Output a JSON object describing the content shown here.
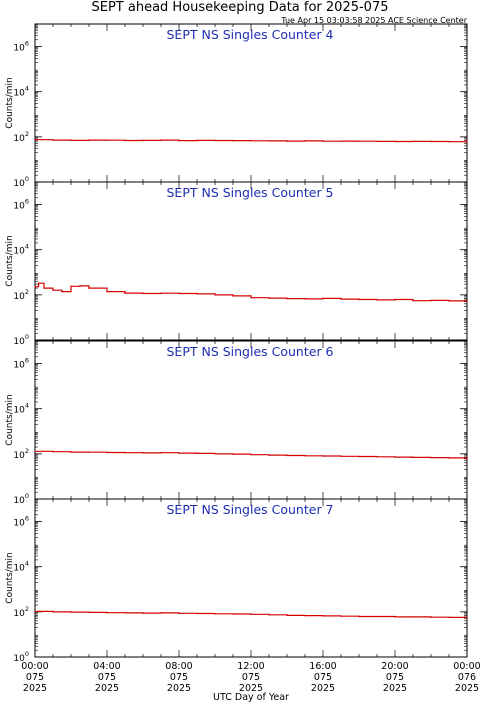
{
  "title": "SEPT ahead Housekeeping Data for 2025-075",
  "timestamp": "Tue Apr 15 03:03:58 2025 ACE Science Center",
  "xlabel": "UTC Day of Year",
  "colors": {
    "trace": "#d40000",
    "panel_title": "#1f2fb4",
    "axes": "#000000"
  },
  "chart_data": [
    {
      "type": "line",
      "title": "SEPT NS Singles Counter 4",
      "ylabel": "Counts/min",
      "yscale": "log",
      "ylim": [
        1,
        10000000
      ],
      "ytick_values": [
        1,
        100,
        10000,
        1000000
      ],
      "ytick_labels": [
        "10",
        "10",
        "10",
        "10"
      ],
      "ytick_exponents": [
        "0",
        "2",
        "4",
        "6"
      ],
      "xlim": [
        0,
        24
      ],
      "series": [
        {
          "x": [
            0,
            1,
            2,
            3,
            4,
            5,
            6,
            7,
            8,
            9,
            10,
            11,
            12,
            13,
            14,
            15,
            16,
            17,
            18,
            19,
            20,
            21,
            22,
            23,
            24
          ],
          "values": [
            75,
            72,
            70,
            72,
            71,
            69,
            70,
            72,
            68,
            70,
            69,
            68,
            67,
            66,
            65,
            66,
            64,
            65,
            64,
            63,
            62,
            63,
            62,
            61,
            70
          ]
        }
      ]
    },
    {
      "type": "line",
      "title": "SEPT NS Singles Counter 5",
      "ylabel": "Counts/min",
      "yscale": "log",
      "ylim": [
        1,
        10000000
      ],
      "ytick_values": [
        1,
        100,
        10000,
        1000000
      ],
      "ytick_labels": [
        "10",
        "10",
        "10",
        "10"
      ],
      "ytick_exponents": [
        "0",
        "2",
        "4",
        "6"
      ],
      "xlim": [
        0,
        24
      ],
      "series": [
        {
          "x": [
            0,
            0.2,
            0.5,
            1,
            1.5,
            2,
            2.5,
            3,
            4,
            5,
            6,
            7,
            8,
            9,
            10,
            11,
            12,
            13,
            14,
            15,
            16,
            17,
            18,
            19,
            20,
            21,
            22,
            23,
            24
          ],
          "values": [
            230,
            330,
            200,
            160,
            140,
            240,
            250,
            200,
            140,
            120,
            115,
            118,
            115,
            110,
            100,
            90,
            75,
            72,
            68,
            66,
            70,
            65,
            62,
            60,
            62,
            55,
            57,
            54,
            50
          ]
        }
      ]
    },
    {
      "type": "line",
      "title": "SEPT NS Singles Counter 6",
      "ylabel": "Counts/min",
      "yscale": "log",
      "ylim": [
        1,
        10000000
      ],
      "ytick_values": [
        1,
        100,
        10000,
        1000000
      ],
      "ytick_labels": [
        "10",
        "10",
        "10",
        "10"
      ],
      "ytick_exponents": [
        "0",
        "2",
        "4",
        "6"
      ],
      "xlim": [
        0,
        24
      ],
      "series": [
        {
          "x": [
            0,
            1,
            2,
            3,
            4,
            5,
            6,
            7,
            8,
            9,
            10,
            11,
            12,
            13,
            14,
            15,
            16,
            17,
            18,
            19,
            20,
            21,
            22,
            23,
            24
          ],
          "values": [
            130,
            125,
            120,
            118,
            115,
            112,
            110,
            112,
            108,
            105,
            100,
            98,
            92,
            88,
            85,
            82,
            80,
            78,
            76,
            74,
            72,
            70,
            68,
            66,
            60
          ]
        }
      ]
    },
    {
      "type": "line",
      "title": "SEPT NS Singles Counter 7",
      "ylabel": "Counts/min",
      "yscale": "log",
      "ylim": [
        1,
        10000000
      ],
      "ytick_values": [
        1,
        100,
        10000,
        1000000
      ],
      "ytick_labels": [
        "10",
        "10",
        "10",
        "10"
      ],
      "ytick_exponents": [
        "0",
        "2",
        "4",
        "6"
      ],
      "xlim": [
        0,
        24
      ],
      "x_tick_labels": [
        [
          "00:00",
          "075",
          "2025"
        ],
        [
          "04:00",
          "075",
          "2025"
        ],
        [
          "08:00",
          "075",
          "2025"
        ],
        [
          "12:00",
          "075",
          "2025"
        ],
        [
          "16:00",
          "075",
          "2025"
        ],
        [
          "20:00",
          "075",
          "2025"
        ],
        [
          "00:00",
          "076",
          "2025"
        ]
      ],
      "series": [
        {
          "x": [
            0,
            1,
            2,
            3,
            4,
            5,
            6,
            7,
            8,
            9,
            10,
            11,
            12,
            13,
            14,
            15,
            16,
            17,
            18,
            19,
            20,
            21,
            22,
            23,
            24
          ],
          "values": [
            105,
            100,
            98,
            95,
            92,
            90,
            88,
            90,
            86,
            85,
            82,
            80,
            78,
            74,
            70,
            68,
            66,
            64,
            62,
            62,
            60,
            60,
            58,
            57,
            56
          ]
        }
      ]
    }
  ]
}
